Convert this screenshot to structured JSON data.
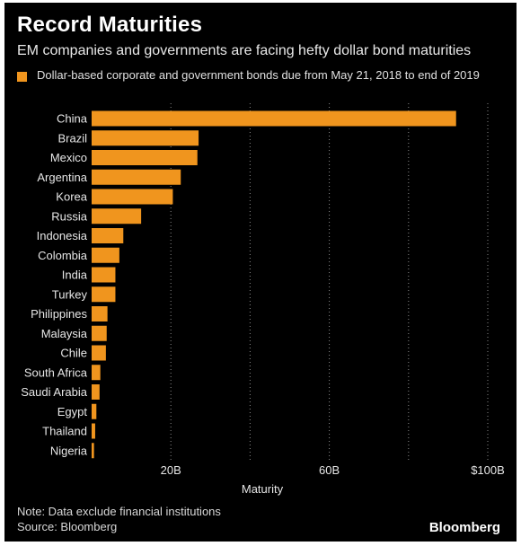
{
  "header": {
    "title": "Record Maturities",
    "subtitle": "EM companies and governments are facing hefty dollar bond maturities"
  },
  "legend": {
    "label": "Dollar-based corporate and government bonds due from May 21, 2018 to end of 2019",
    "color": "#f0951e"
  },
  "footer": {
    "note": "Note: Data exclude financial institutions",
    "source": "Source: Bloomberg",
    "brand": "Bloomberg"
  },
  "chart_data": {
    "type": "bar",
    "orientation": "horizontal",
    "title": "Record Maturities",
    "subtitle": "EM companies and governments are facing hefty dollar bond maturities",
    "xlabel": "Maturity",
    "ylabel": "",
    "categories": [
      "China",
      "Brazil",
      "Mexico",
      "Argentina",
      "Korea",
      "Russia",
      "Indonesia",
      "Colombia",
      "India",
      "Turkey",
      "Philippines",
      "Malaysia",
      "Chile",
      "South Africa",
      "Saudi Arabia",
      "Egypt",
      "Thailand",
      "Nigeria"
    ],
    "series": [
      {
        "name": "Dollar-based corporate and government bonds due from May 21, 2018 to end of 2019",
        "values": [
          92,
          27,
          26.7,
          22.5,
          20.5,
          12.5,
          8,
          7,
          6,
          6,
          4,
          3.8,
          3.6,
          2.2,
          2,
          1.2,
          0.9,
          0.6
        ],
        "unit": "B"
      }
    ],
    "xlim": [
      0,
      100
    ],
    "ticks": [
      {
        "value": 20,
        "label": "20B"
      },
      {
        "value": 60,
        "label": "60B"
      },
      {
        "value": 100,
        "label": "$100B"
      }
    ],
    "gridlines": [
      40,
      80
    ],
    "grid": true,
    "legend_position": "top",
    "bar_color": "#f0951e"
  }
}
